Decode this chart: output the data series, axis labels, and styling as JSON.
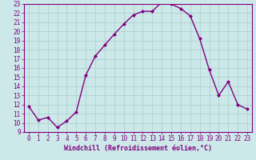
{
  "x": [
    0,
    1,
    2,
    3,
    4,
    5,
    6,
    7,
    8,
    9,
    10,
    11,
    12,
    13,
    14,
    15,
    16,
    17,
    18,
    19,
    20,
    21,
    22,
    23
  ],
  "y": [
    11.8,
    10.3,
    10.6,
    9.5,
    10.2,
    11.2,
    15.2,
    17.3,
    18.5,
    19.7,
    20.8,
    21.8,
    22.2,
    22.2,
    23.2,
    23.0,
    22.5,
    21.7,
    19.2,
    15.8,
    13.0,
    14.5,
    12.0,
    11.5
  ],
  "line_color": "#800080",
  "marker": "D",
  "marker_size": 2.0,
  "bg_color": "#cce8e8",
  "grid_color": "#aacccc",
  "xlabel": "Windchill (Refroidissement éolien,°C)",
  "ylim": [
    9,
    23
  ],
  "xlim": [
    -0.5,
    23.5
  ],
  "yticks": [
    9,
    10,
    11,
    12,
    13,
    14,
    15,
    16,
    17,
    18,
    19,
    20,
    21,
    22,
    23
  ],
  "xticks": [
    0,
    1,
    2,
    3,
    4,
    5,
    6,
    7,
    8,
    9,
    10,
    11,
    12,
    13,
    14,
    15,
    16,
    17,
    18,
    19,
    20,
    21,
    22,
    23
  ],
  "tick_color": "#800080",
  "label_color": "#800080",
  "axis_color": "#800080",
  "line_width": 1.0,
  "tick_fontsize": 5.5,
  "xlabel_fontsize": 6.0
}
